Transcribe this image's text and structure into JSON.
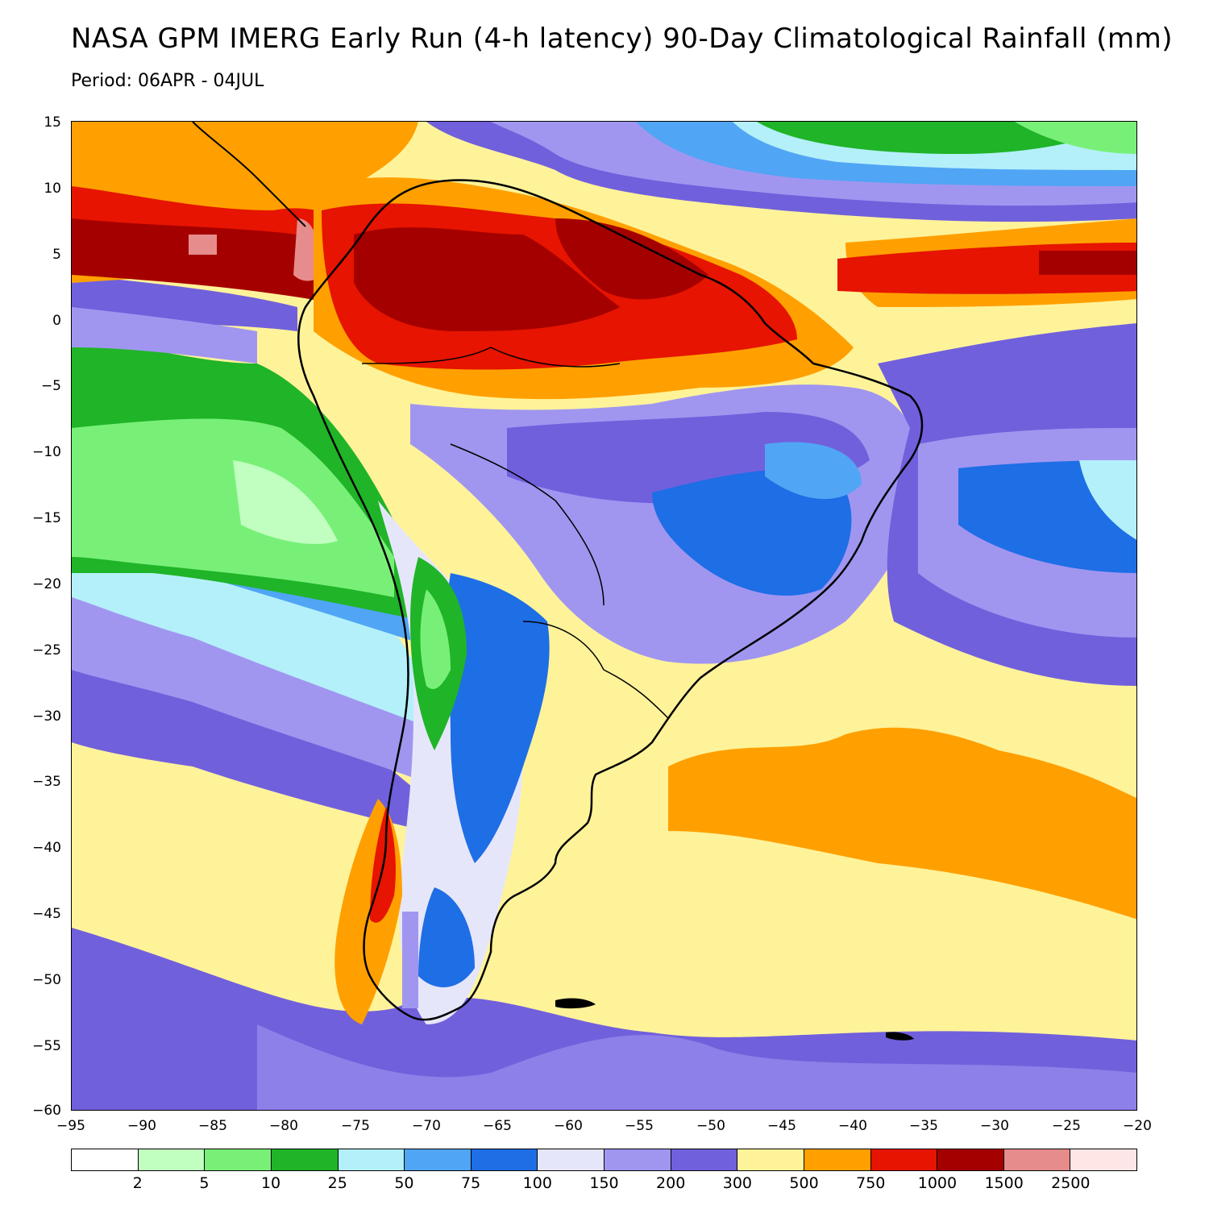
{
  "title": "NASA GPM IMERG Early Run (4-h latency) 90-Day Climatological Rainfall (mm)",
  "subtitle": "Period: 06APR - 04JUL",
  "map": {
    "lon_range": [
      -95,
      -20
    ],
    "lat_range": [
      -60,
      15
    ],
    "region": "South America",
    "background_level_color": "#fff39a"
  },
  "y_ticks": [
    "15",
    "10",
    "5",
    "0",
    "−5",
    "−10",
    "−15",
    "−20",
    "−25",
    "−30",
    "−35",
    "−40",
    "−45",
    "−50",
    "−55",
    "−60"
  ],
  "x_ticks": [
    "−95",
    "−90",
    "−85",
    "−80",
    "−75",
    "−70",
    "−65",
    "−60",
    "−55",
    "−50",
    "−45",
    "−40",
    "−35",
    "−30",
    "−25",
    "−20"
  ],
  "colorbar": {
    "colors": [
      "#ffffff",
      "#c0ffc0",
      "#78f078",
      "#20b428",
      "#b4f0fa",
      "#50a5f5",
      "#1e6ee6",
      "#e6e6fa",
      "#a096f0",
      "#7160dc",
      "#fff39a",
      "#ffa000",
      "#e61400",
      "#a50000",
      "#e68c8c",
      "#ffe6e6"
    ],
    "labels": [
      "2",
      "5",
      "10",
      "25",
      "50",
      "75",
      "100",
      "150",
      "200",
      "300",
      "500",
      "750",
      "1000",
      "1500",
      "2500"
    ]
  }
}
